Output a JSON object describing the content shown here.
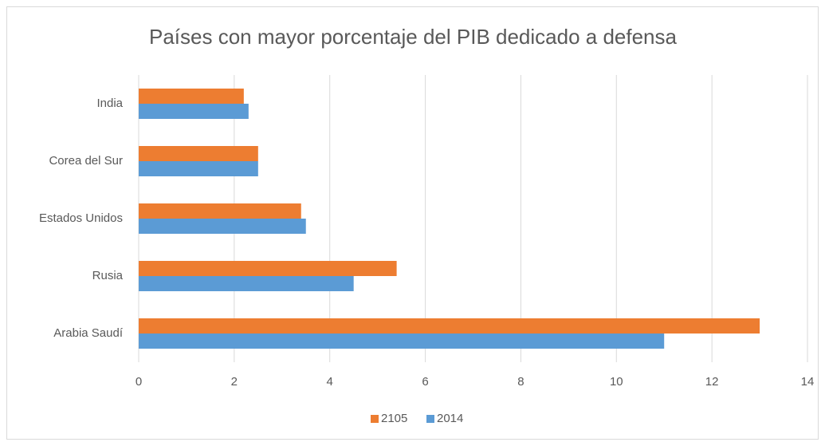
{
  "chart_data": {
    "type": "barh",
    "title": "Países con mayor porcentaje del PIB dedicado a defensa",
    "categories": [
      "India",
      "Corea del Sur",
      "Estados Unidos",
      "Rusia",
      "Arabia Saudí"
    ],
    "series": [
      {
        "name": "2105",
        "color": "#ed7d31",
        "values": [
          2.2,
          2.5,
          3.4,
          5.4,
          13
        ]
      },
      {
        "name": "2014",
        "color": "#5b9bd5",
        "values": [
          2.3,
          2.5,
          3.5,
          4.5,
          11
        ]
      }
    ],
    "xlim": [
      0,
      14
    ],
    "xticks": [
      0,
      2,
      4,
      6,
      8,
      10,
      12,
      14
    ],
    "grid": true,
    "legend": "bottom"
  }
}
